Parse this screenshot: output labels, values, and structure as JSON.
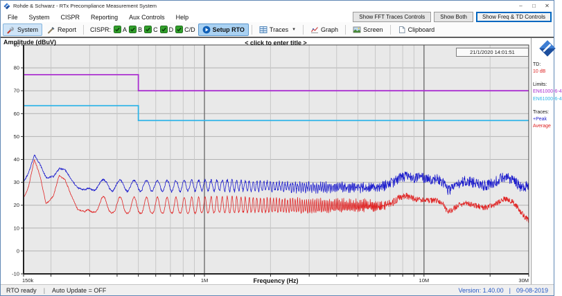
{
  "window": {
    "title": "Rohde & Schwarz - RTx Precompliance Measurement System",
    "controls": [
      {
        "name": "minimize",
        "glyph": "–"
      },
      {
        "name": "maximize",
        "glyph": "□"
      },
      {
        "name": "close",
        "glyph": "✕"
      }
    ]
  },
  "menu": {
    "items": [
      "File",
      "System",
      "CISPR",
      "Reporting",
      "Aux Controls",
      "Help"
    ]
  },
  "view_buttons": [
    {
      "label": "Show FFT Traces Controls",
      "active": false
    },
    {
      "label": "Show Both",
      "active": false
    },
    {
      "label": "Show Freq & TD Controls",
      "active": true
    }
  ],
  "toolbar": {
    "system_label": "System",
    "report_label": "Report",
    "cispr_label": "CISPR:",
    "cispr_checks": [
      "A",
      "B",
      "C",
      "D",
      "C/D"
    ],
    "setup_rto_label": "Setup RTO",
    "traces_label": "Traces",
    "graph_label": "Graph",
    "screen_label": "Screen",
    "clipboard_label": "Clipboard"
  },
  "side_panel": {
    "td_label": "TD:",
    "td_value": "10 dB",
    "limits_label": "Limits:",
    "limit_names": [
      "EN61000-6-4",
      "EN61000-6-4"
    ],
    "traces_label": "Traces:",
    "trace_names": [
      "+Peak",
      "Average"
    ]
  },
  "status_bar": {
    "left": [
      "RTO ready",
      "Auto Update = OFF"
    ],
    "divider": "|",
    "right": [
      "Version: 1.40.00",
      "09-08-2019"
    ]
  },
  "chart_data": {
    "type": "line",
    "title": "< click to enter title >",
    "timestamp": "21/1/2020 14:01:51",
    "xlabel": "Frequency (Hz)",
    "ylabel": "Amplitude (dBuV)",
    "x_scale": "log",
    "xlim": [
      150000,
      30000000
    ],
    "ylim": [
      -10,
      90
    ],
    "y_tick_step": 10,
    "x_ticks": [
      {
        "f": 150000,
        "label": "150k"
      },
      {
        "f": 1000000,
        "label": "1M"
      },
      {
        "f": 10000000,
        "label": "10M"
      },
      {
        "f": 30000000,
        "label": "30M"
      }
    ],
    "grid": true,
    "legend_position": "right",
    "limit_lines": [
      {
        "name": "EN61000-6-4",
        "color": "#aa2fd0",
        "points": [
          [
            150000,
            77
          ],
          [
            500000,
            77
          ],
          [
            500000,
            70
          ],
          [
            30000000,
            70
          ]
        ]
      },
      {
        "name": "EN61000-6-4",
        "color": "#2fb4e8",
        "points": [
          [
            150000,
            63.5
          ],
          [
            500000,
            63.5
          ],
          [
            500000,
            57
          ],
          [
            30000000,
            57
          ]
        ]
      }
    ],
    "comb_period_hz": 66000,
    "traces": [
      {
        "name": "+Peak",
        "color": "#1a1acc",
        "seed": 7,
        "comb_exponent": 0.9,
        "envelope": [
          [
            150000,
            30
          ],
          [
            158000,
            34
          ],
          [
            168000,
            42
          ],
          [
            178000,
            38
          ],
          [
            190000,
            32
          ],
          [
            205000,
            32.5
          ],
          [
            218000,
            36
          ],
          [
            232000,
            35.5
          ],
          [
            248000,
            31
          ],
          [
            265000,
            27.5
          ],
          [
            290000,
            26.5
          ],
          [
            450000,
            26
          ],
          [
            800000,
            26
          ],
          [
            1500000,
            26.2
          ],
          [
            3000000,
            26
          ],
          [
            5000000,
            26.5
          ],
          [
            6200000,
            27
          ],
          [
            7000000,
            29
          ],
          [
            7600000,
            31.5
          ],
          [
            8300000,
            32.5
          ],
          [
            9200000,
            32
          ],
          [
            10500000,
            31.5
          ],
          [
            11500000,
            31.3
          ],
          [
            12200000,
            30
          ],
          [
            12700000,
            26.8
          ],
          [
            13300000,
            27
          ],
          [
            14200000,
            29.5
          ],
          [
            15500000,
            30.5
          ],
          [
            16500000,
            30.2
          ],
          [
            17500000,
            29.3
          ],
          [
            18500000,
            28.6
          ],
          [
            19500000,
            28.8
          ],
          [
            21000000,
            30
          ],
          [
            22500000,
            31.8
          ],
          [
            23500000,
            32.2
          ],
          [
            24500000,
            31.6
          ],
          [
            25500000,
            30.8
          ],
          [
            26500000,
            29.4
          ],
          [
            27500000,
            28.3
          ],
          [
            28500000,
            28
          ],
          [
            30000000,
            28.6
          ]
        ],
        "comb_amplitude": [
          [
            150000,
            0
          ],
          [
            285000,
            0
          ],
          [
            320000,
            4.8
          ],
          [
            1200000,
            4.8
          ],
          [
            2500000,
            3.8
          ],
          [
            4000000,
            3
          ],
          [
            5500000,
            2.2
          ],
          [
            6800000,
            1
          ],
          [
            7200000,
            0
          ],
          [
            30000000,
            0
          ]
        ],
        "noise_amplitude": [
          [
            150000,
            0.35
          ],
          [
            800000,
            0.5
          ],
          [
            2000000,
            0.8
          ],
          [
            4000000,
            1.1
          ],
          [
            6000000,
            1.6
          ],
          [
            7300000,
            2.3
          ],
          [
            30000000,
            2.3
          ]
        ]
      },
      {
        "name": "Average",
        "color": "#e02525",
        "seed": 13,
        "comb_exponent": 1.5,
        "envelope": [
          [
            150000,
            23
          ],
          [
            158000,
            28
          ],
          [
            168000,
            40
          ],
          [
            178000,
            33
          ],
          [
            190000,
            20.5
          ],
          [
            205000,
            24
          ],
          [
            218000,
            33
          ],
          [
            232000,
            31
          ],
          [
            248000,
            24
          ],
          [
            265000,
            18
          ],
          [
            290000,
            17
          ],
          [
            450000,
            16.5
          ],
          [
            800000,
            16.5
          ],
          [
            1500000,
            17
          ],
          [
            3000000,
            17
          ],
          [
            5000000,
            17.8
          ],
          [
            6200000,
            18.3
          ],
          [
            7000000,
            20
          ],
          [
            7600000,
            23
          ],
          [
            8300000,
            24
          ],
          [
            9200000,
            22.5
          ],
          [
            10500000,
            22
          ],
          [
            11500000,
            22
          ],
          [
            12200000,
            21.3
          ],
          [
            12700000,
            17.3
          ],
          [
            13300000,
            17.5
          ],
          [
            14200000,
            19.8
          ],
          [
            15500000,
            20.8
          ],
          [
            16500000,
            20.4
          ],
          [
            17500000,
            19.6
          ],
          [
            18500000,
            19
          ],
          [
            19500000,
            19.3
          ],
          [
            21000000,
            20.2
          ],
          [
            22500000,
            22.2
          ],
          [
            23500000,
            22.8
          ],
          [
            24500000,
            22.2
          ],
          [
            25500000,
            21.3
          ],
          [
            26500000,
            19.3
          ],
          [
            27500000,
            17.3
          ],
          [
            28500000,
            15.3
          ],
          [
            30000000,
            13.2
          ]
        ],
        "comb_amplitude": [
          [
            150000,
            0
          ],
          [
            285000,
            0
          ],
          [
            320000,
            7
          ],
          [
            1200000,
            7
          ],
          [
            2500000,
            6
          ],
          [
            4000000,
            5
          ],
          [
            5500000,
            4
          ],
          [
            6800000,
            1.5
          ],
          [
            7200000,
            0
          ],
          [
            30000000,
            0
          ]
        ],
        "noise_amplitude": [
          [
            150000,
            0.25
          ],
          [
            800000,
            0.35
          ],
          [
            2000000,
            0.55
          ],
          [
            4000000,
            0.8
          ],
          [
            6000000,
            1.1
          ],
          [
            7300000,
            1.7
          ],
          [
            9500000,
            1.2
          ],
          [
            30000000,
            1.2
          ]
        ]
      }
    ]
  }
}
